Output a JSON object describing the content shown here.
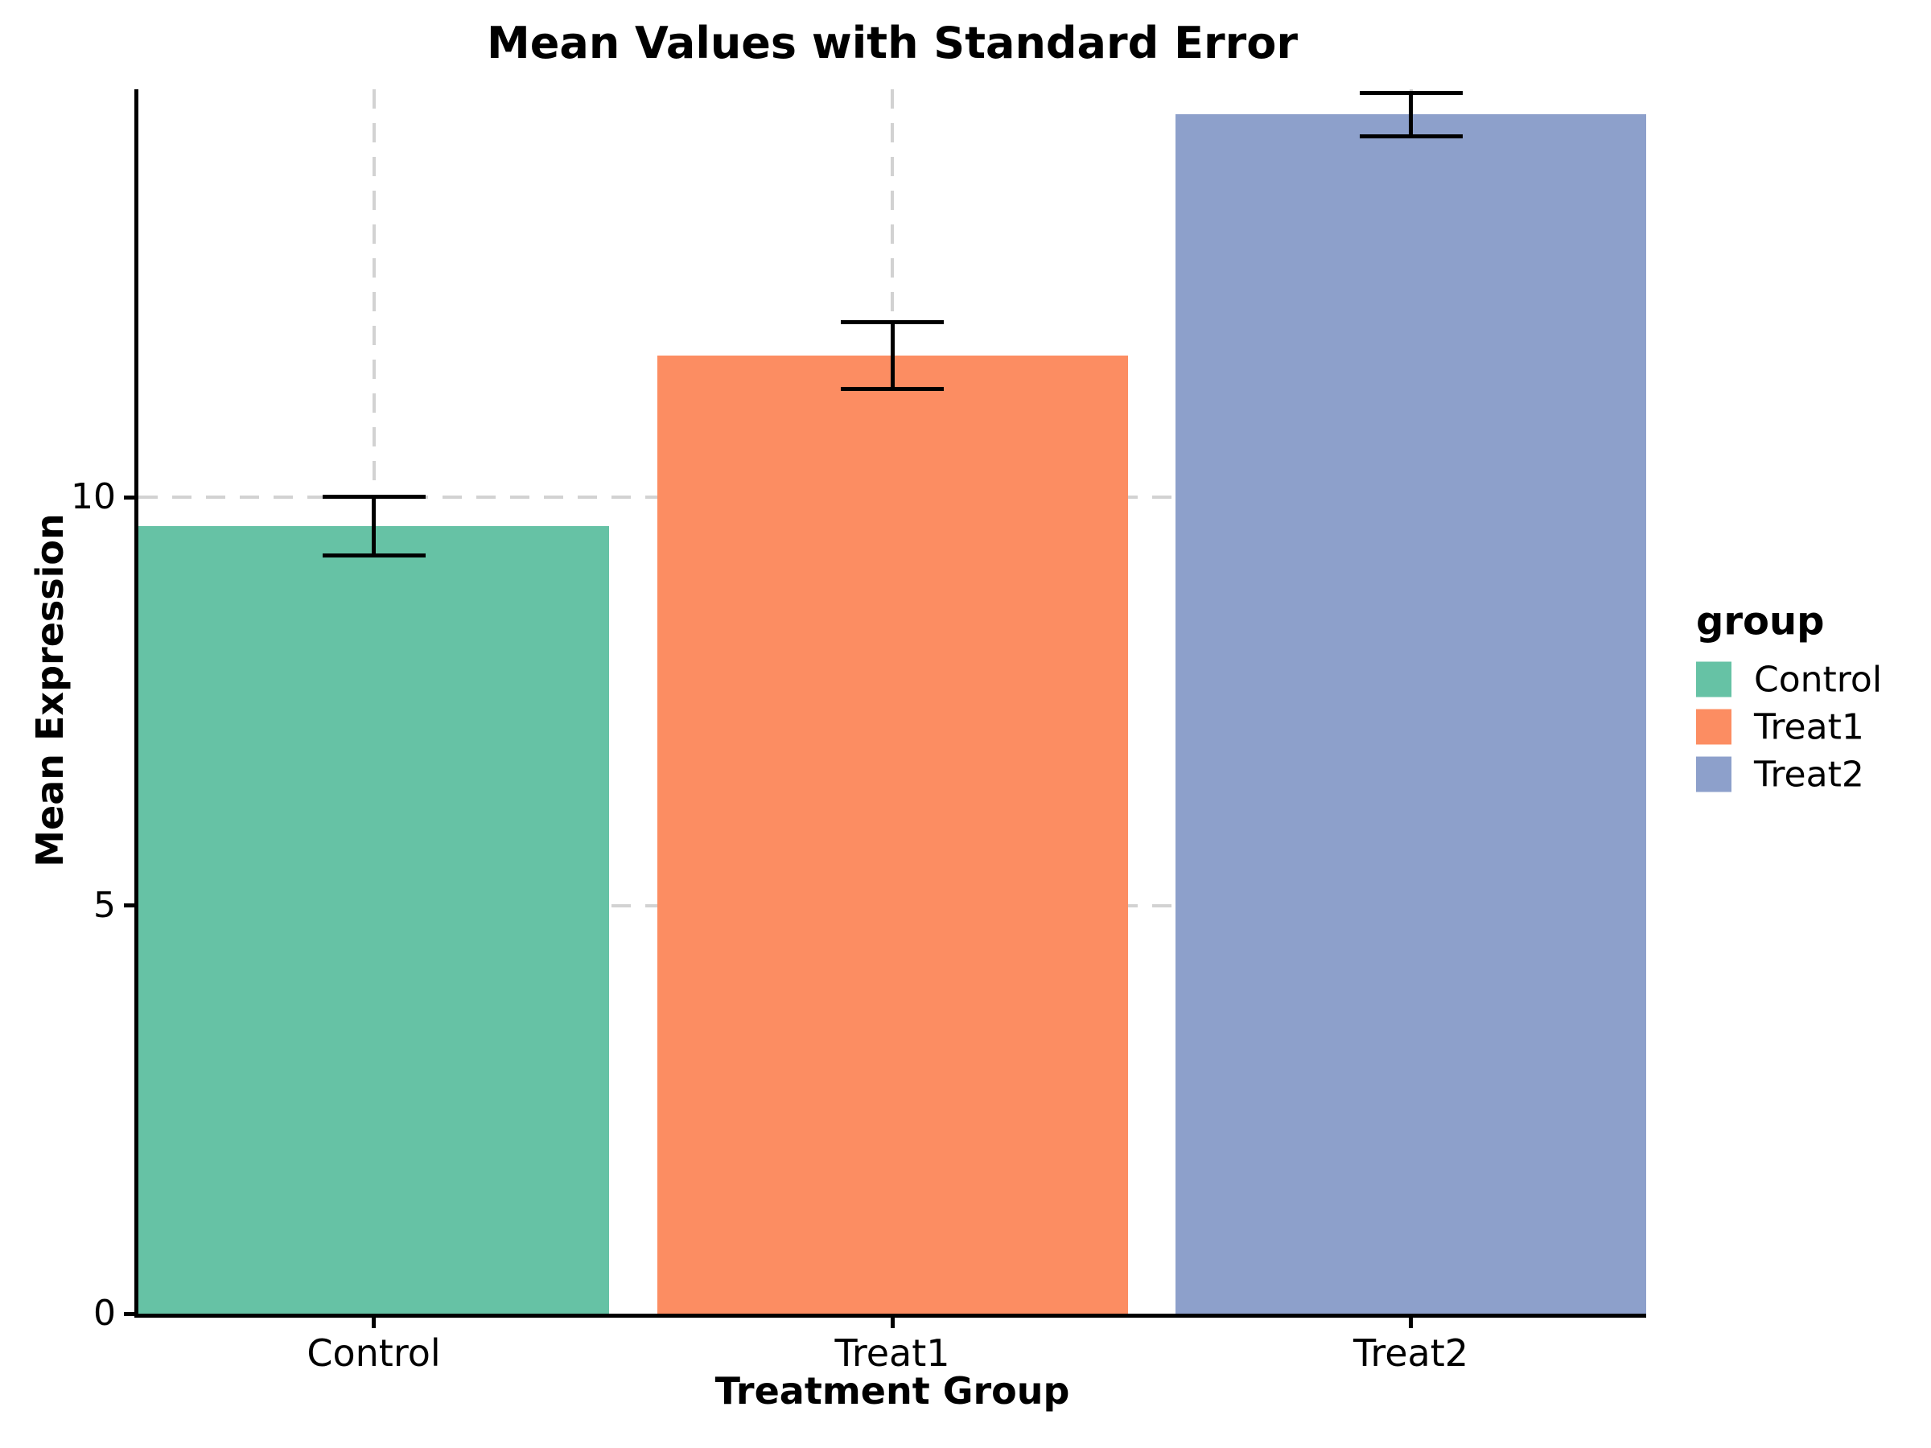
{
  "chart_data": {
    "type": "bar",
    "title": "Mean Values with Standard Error",
    "xlabel": "Treatment Group",
    "ylabel": "Mean Expression",
    "categories": [
      "Control",
      "Treat1",
      "Treat2"
    ],
    "series": [
      {
        "name": "mean",
        "values": [
          9.65,
          11.74,
          14.69
        ]
      },
      {
        "name": "standard_error",
        "values": [
          0.36,
          0.41,
          0.27
        ]
      }
    ],
    "ylim": [
      0,
      15
    ],
    "yticks": [
      0,
      5,
      10
    ],
    "grid": {
      "show": true,
      "style": "dashed",
      "color": "#d2d2d2",
      "horizontal_at": [
        5,
        10
      ],
      "vertical_at_categories": true
    },
    "colors": {
      "bars": [
        "#66c2a5",
        "#fc8d62",
        "#8da0cb"
      ],
      "axis": "#000000",
      "error_bar": "#000000",
      "text": "#000000",
      "background": "#ffffff"
    },
    "legend": {
      "title": "group",
      "position": "right",
      "items": [
        {
          "label": "Control",
          "color": "#66c2a5"
        },
        {
          "label": "Treat1",
          "color": "#fc8d62"
        },
        {
          "label": "Treat2",
          "color": "#8da0cb"
        }
      ]
    }
  }
}
